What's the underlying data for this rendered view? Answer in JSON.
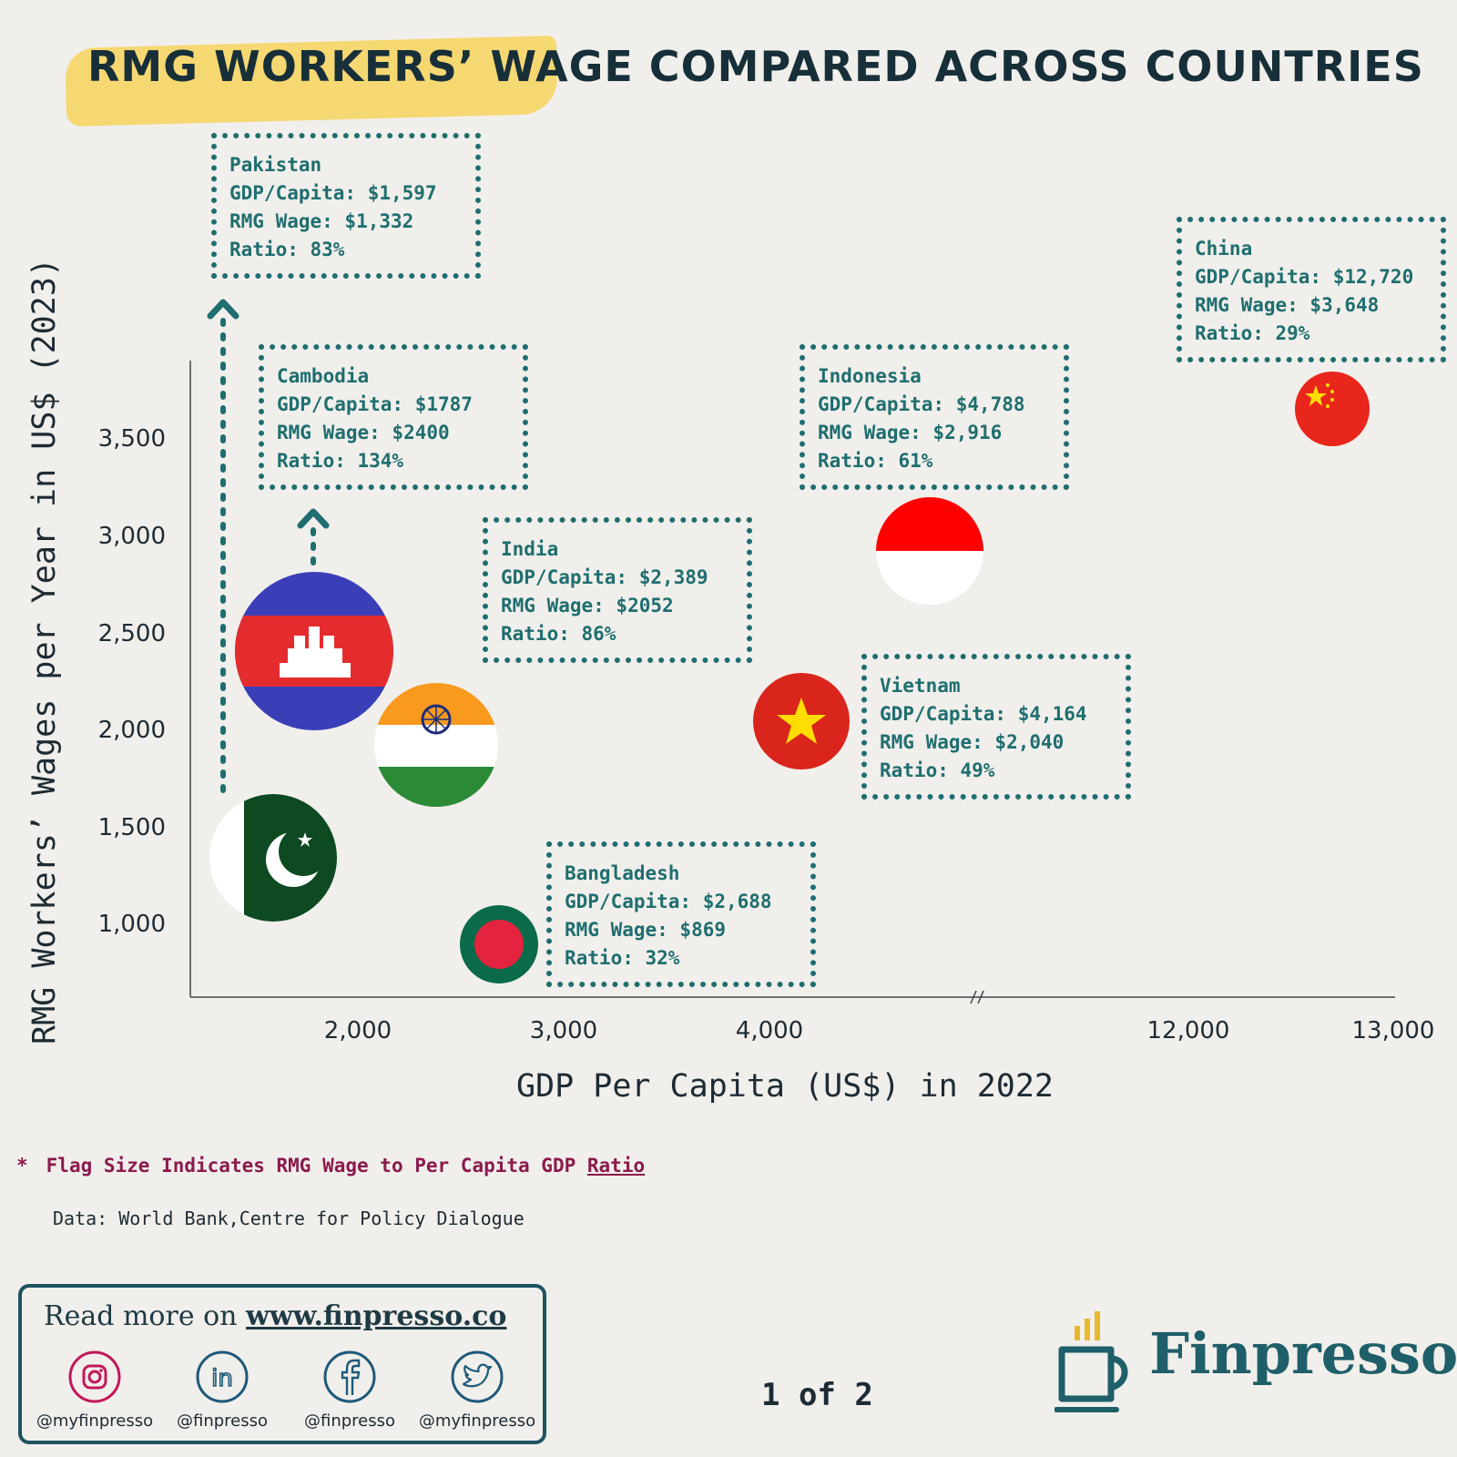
{
  "title": "RMG Workers’ Wage Compared Across Countries",
  "chart_data": {
    "type": "scatter",
    "title": "RMG Workers’ Wage Compared Across Countries",
    "xlabel": "GDP Per Capita (US$) in 2022",
    "ylabel": "RMG Workers’ Wages per Year in US$ (2023)",
    "x_ticks": [
      "2,000",
      "3,000",
      "4,000",
      "12,000",
      "13,000"
    ],
    "y_ticks": [
      "3,500",
      "3,000",
      "2,500",
      "2,000",
      "1,500",
      "1,000"
    ],
    "x_axis_break": "between 4,000 and 12,000",
    "size_encodes": "RMG wage to per capita GDP ratio",
    "points": [
      {
        "country": "Pakistan",
        "gdp_per_capita": 1597,
        "rmg_wage": 1332,
        "ratio": 83,
        "flag": "pakistan-flag",
        "plotted_wage": 1332,
        "note": "actual wage exceeds shown position (arrow up)"
      },
      {
        "country": "Cambodia",
        "gdp_per_capita": 1787,
        "rmg_wage": 2400,
        "ratio": 134,
        "flag": "cambodia-flag"
      },
      {
        "country": "India",
        "gdp_per_capita": 2389,
        "rmg_wage": 2052,
        "ratio": 86,
        "flag": "india-flag"
      },
      {
        "country": "Bangladesh",
        "gdp_per_capita": 2688,
        "rmg_wage": 869,
        "ratio": 32,
        "flag": "bangladesh-flag"
      },
      {
        "country": "Vietnam",
        "gdp_per_capita": 4164,
        "rmg_wage": 2040,
        "ratio": 49,
        "flag": "vietnam-flag"
      },
      {
        "country": "Indonesia",
        "gdp_per_capita": 4788,
        "rmg_wage": 2916,
        "ratio": 61,
        "flag": "indonesia-flag"
      },
      {
        "country": "China",
        "gdp_per_capita": 12720,
        "rmg_wage": 3648,
        "ratio": 29,
        "flag": "china-flag"
      }
    ]
  },
  "annotations": {
    "pakistan": {
      "line1": "Pakistan",
      "line2": "GDP/Capita: $1,597",
      "line3": "RMG Wage: $1,332",
      "line4": "Ratio: 83%"
    },
    "cambodia": {
      "line1": "Cambodia",
      "line2": "GDP/Capita: $1787",
      "line3": "RMG Wage: $2400",
      "line4": "Ratio: 134%"
    },
    "india": {
      "line1": "India",
      "line2": "GDP/Capita: $2,389",
      "line3": "RMG Wage: $2052",
      "line4": "Ratio: 86%"
    },
    "indonesia": {
      "line1": "Indonesia",
      "line2": "GDP/Capita: $4,788",
      "line3": "RMG Wage: $2,916",
      "line4": "Ratio: 61%"
    },
    "china": {
      "line1": "China",
      "line2": "GDP/Capita: $12,720",
      "line3": "RMG Wage: $3,648",
      "line4": "Ratio: 29%"
    },
    "vietnam": {
      "line1": "Vietnam",
      "line2": "GDP/Capita: $4,164",
      "line3": "RMG Wage: $2,040",
      "line4": "Ratio: 49%"
    },
    "bangladesh": {
      "line1": "Bangladesh",
      "line2": "GDP/Capita: $2,688",
      "line3": "RMG Wage: $869",
      "line4": "Ratio: 32%"
    }
  },
  "footnote": {
    "star": "*",
    "text": "Flag Size Indicates RMG Wage to Per Capita GDP ",
    "underlined": "Ratio"
  },
  "source": "Data: World Bank,Centre for Policy Dialogue",
  "read_more": {
    "prefix": "Read more on ",
    "url": "www.finpresso.co"
  },
  "socials": [
    {
      "icon": "instagram-icon",
      "handle": "@myfinpresso",
      "color": "#c2185b"
    },
    {
      "icon": "linkedin-icon",
      "handle": "@finpresso",
      "color": "#1e5a7a"
    },
    {
      "icon": "facebook-icon",
      "handle": "@finpresso",
      "color": "#1e5a7a"
    },
    {
      "icon": "twitter-icon",
      "handle": "@myfinpresso",
      "color": "#1e5a7a"
    }
  ],
  "page_indicator": "1 of 2",
  "brand": {
    "name": "Finpresso",
    "color": "#1f5f69",
    "accent": "#e8b92e"
  },
  "colors": {
    "annotation": "#1f6e70",
    "title_highlight": "#f6d873",
    "footnote": "#8a1b4d"
  }
}
